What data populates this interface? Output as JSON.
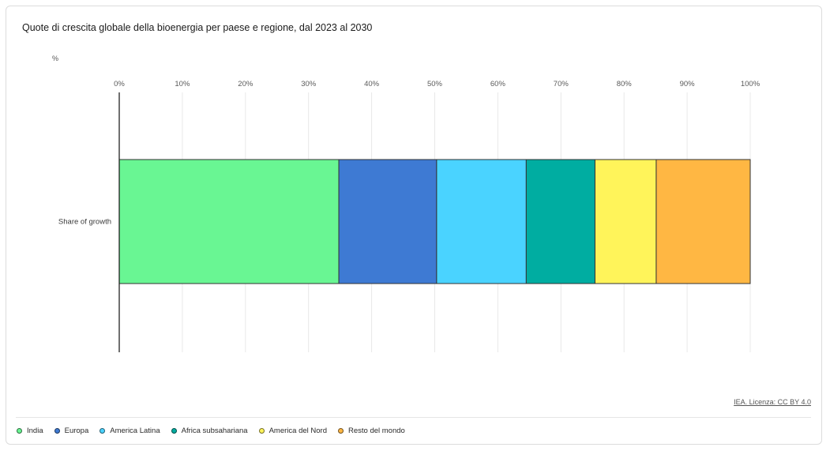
{
  "title": "Quote di crescita globale della bioenergia per paese e regione, dal 2023 al 2030",
  "unit_label": "%",
  "source_label": "IEA. Licenza: CC BY 4.0",
  "chart_data": {
    "type": "bar",
    "orientation": "horizontal",
    "stacked": true,
    "title": "Quote di crescita globale della bioenergia per paese e regione, dal 2023 al 2030",
    "categories": [
      "Share of growth"
    ],
    "xlim": [
      0,
      100
    ],
    "x_ticks": [
      "0%",
      "10%",
      "20%",
      "30%",
      "40%",
      "50%",
      "60%",
      "70%",
      "80%",
      "90%",
      "100%"
    ],
    "x_tick_values": [
      0,
      10,
      20,
      30,
      40,
      50,
      60,
      70,
      80,
      90,
      100
    ],
    "grid": true,
    "legend_position": "bottom",
    "series": [
      {
        "name": "India",
        "values": [
          34.8
        ],
        "color": "#69f693"
      },
      {
        "name": "Europa",
        "values": [
          15.5
        ],
        "color": "#3e7ad3"
      },
      {
        "name": "America Latina",
        "values": [
          14.2
        ],
        "color": "#4ad3ff"
      },
      {
        "name": "Africa subsahariana",
        "values": [
          10.9
        ],
        "color": "#00ada1"
      },
      {
        "name": "America del Nord",
        "values": [
          9.7
        ],
        "color": "#fff45a"
      },
      {
        "name": "Resto del mondo",
        "values": [
          14.9
        ],
        "color": "#ffb743"
      }
    ]
  }
}
